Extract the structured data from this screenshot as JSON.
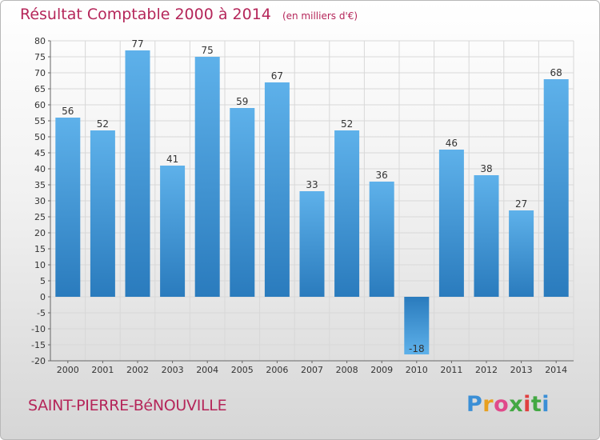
{
  "header": {
    "title": "Résultat Comptable 2000 à 2014",
    "subtitle": "(en milliers d'€)"
  },
  "footer": {
    "commune": "SAINT-PIERRE-BéNOUVILLE",
    "logo": "Proxiti"
  },
  "colors": {
    "title": "#b5265a",
    "bar_light": "#5eb1ea",
    "bar_dark": "#2a7bbd",
    "grid": "#d8d8d8"
  },
  "chart_data": {
    "type": "bar",
    "title": "Résultat Comptable 2000 à 2014",
    "categories": [
      "2000",
      "2001",
      "2002",
      "2003",
      "2004",
      "2005",
      "2006",
      "2007",
      "2008",
      "2009",
      "2010",
      "2011",
      "2012",
      "2013",
      "2014"
    ],
    "values": [
      56,
      52,
      77,
      41,
      75,
      59,
      67,
      33,
      52,
      36,
      -18,
      46,
      38,
      27,
      68
    ],
    "ylim": [
      -20,
      80
    ],
    "ytick_step": 5,
    "grid": true,
    "xlabel": "",
    "ylabel": ""
  }
}
